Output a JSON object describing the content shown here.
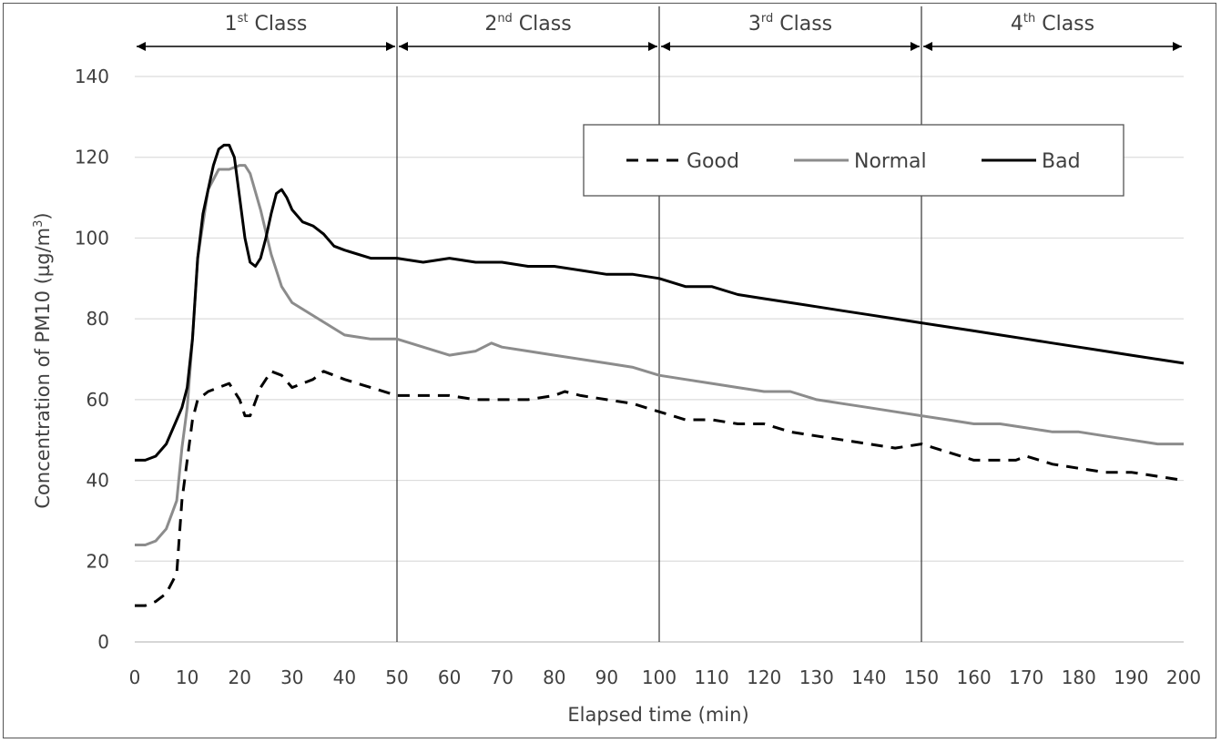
{
  "chart_data": {
    "type": "line",
    "title": "",
    "xlabel": "Elapsed time (min)",
    "ylabel": "Concentration of PM10 (µg/m³)",
    "ylabel_parts": {
      "main": "Concentration of PM10 (µg/m",
      "sup": "3",
      "tail": ")"
    },
    "xlim": [
      0,
      200
    ],
    "ylim": [
      0,
      140
    ],
    "x_ticks": [
      0,
      10,
      20,
      30,
      40,
      50,
      60,
      70,
      80,
      90,
      100,
      110,
      120,
      130,
      140,
      150,
      160,
      170,
      180,
      190,
      200
    ],
    "y_ticks": [
      0,
      20,
      40,
      60,
      80,
      100,
      120,
      140
    ],
    "grid": "horizontal",
    "legend_position": "top-right",
    "class_boundaries": [
      50,
      100,
      150
    ],
    "classes": [
      {
        "num": "1",
        "sup": "st",
        "label": "Class",
        "start": 0,
        "end": 50
      },
      {
        "num": "2",
        "sup": "nd",
        "label": "Class",
        "start": 50,
        "end": 100
      },
      {
        "num": "3",
        "sup": "rd",
        "label": "Class",
        "start": 100,
        "end": 150
      },
      {
        "num": "4",
        "sup": "th",
        "label": "Class",
        "start": 150,
        "end": 200
      }
    ],
    "series": [
      {
        "name": "Good",
        "color": "#000000",
        "style": "dashed",
        "x": [
          0,
          2,
          4,
          6,
          8,
          9,
          10,
          11,
          12,
          14,
          16,
          18,
          20,
          21,
          22,
          24,
          26,
          28,
          30,
          32,
          34,
          36,
          38,
          40,
          45,
          50,
          55,
          60,
          65,
          70,
          75,
          80,
          82,
          85,
          90,
          95,
          100,
          105,
          110,
          115,
          120,
          125,
          130,
          135,
          140,
          145,
          150,
          155,
          160,
          165,
          168,
          170,
          175,
          180,
          185,
          190,
          195,
          200
        ],
        "y": [
          9,
          9,
          10,
          12,
          17,
          35,
          45,
          55,
          60,
          62,
          63,
          64,
          60,
          56,
          56,
          63,
          67,
          66,
          63,
          64,
          65,
          67,
          66,
          65,
          63,
          61,
          61,
          61,
          60,
          60,
          60,
          61,
          62,
          61,
          60,
          59,
          57,
          55,
          55,
          54,
          54,
          52,
          51,
          50,
          49,
          48,
          49,
          47,
          45,
          45,
          45,
          46,
          44,
          43,
          42,
          42,
          41,
          40
        ]
      },
      {
        "name": "Normal",
        "color": "#8c8c8c",
        "style": "solid",
        "x": [
          0,
          2,
          4,
          6,
          8,
          9,
          10,
          11,
          12,
          14,
          16,
          18,
          20,
          21,
          22,
          24,
          26,
          28,
          30,
          35,
          40,
          45,
          50,
          55,
          60,
          65,
          68,
          70,
          75,
          80,
          85,
          90,
          95,
          100,
          105,
          110,
          115,
          120,
          125,
          130,
          135,
          140,
          145,
          150,
          155,
          160,
          165,
          170,
          175,
          180,
          185,
          190,
          195,
          200
        ],
        "y": [
          24,
          24,
          25,
          28,
          35,
          48,
          58,
          75,
          95,
          112,
          117,
          117,
          118,
          118,
          116,
          107,
          96,
          88,
          84,
          80,
          76,
          75,
          75,
          73,
          71,
          72,
          74,
          73,
          72,
          71,
          70,
          69,
          68,
          66,
          65,
          64,
          63,
          62,
          62,
          60,
          59,
          58,
          57,
          56,
          55,
          54,
          54,
          53,
          52,
          52,
          51,
          50,
          49,
          49
        ]
      },
      {
        "name": "Bad",
        "color": "#000000",
        "style": "solid",
        "x": [
          0,
          2,
          4,
          6,
          8,
          9,
          10,
          11,
          12,
          13,
          14,
          15,
          16,
          17,
          18,
          19,
          20,
          21,
          22,
          23,
          24,
          25,
          26,
          27,
          28,
          29,
          30,
          32,
          34,
          36,
          38,
          40,
          45,
          50,
          55,
          60,
          65,
          70,
          75,
          80,
          85,
          90,
          95,
          100,
          105,
          110,
          115,
          120,
          125,
          130,
          135,
          140,
          145,
          150,
          155,
          160,
          165,
          170,
          175,
          180,
          185,
          190,
          195,
          200
        ],
        "y": [
          45,
          45,
          46,
          49,
          55,
          58,
          63,
          75,
          95,
          106,
          112,
          118,
          122,
          123,
          123,
          120,
          110,
          100,
          94,
          93,
          95,
          100,
          106,
          111,
          112,
          110,
          107,
          104,
          103,
          101,
          98,
          97,
          95,
          95,
          94,
          95,
          94,
          94,
          93,
          93,
          92,
          91,
          91,
          90,
          88,
          88,
          86,
          85,
          84,
          83,
          82,
          81,
          80,
          79,
          78,
          77,
          76,
          75,
          74,
          73,
          72,
          71,
          70,
          69
        ]
      }
    ]
  }
}
